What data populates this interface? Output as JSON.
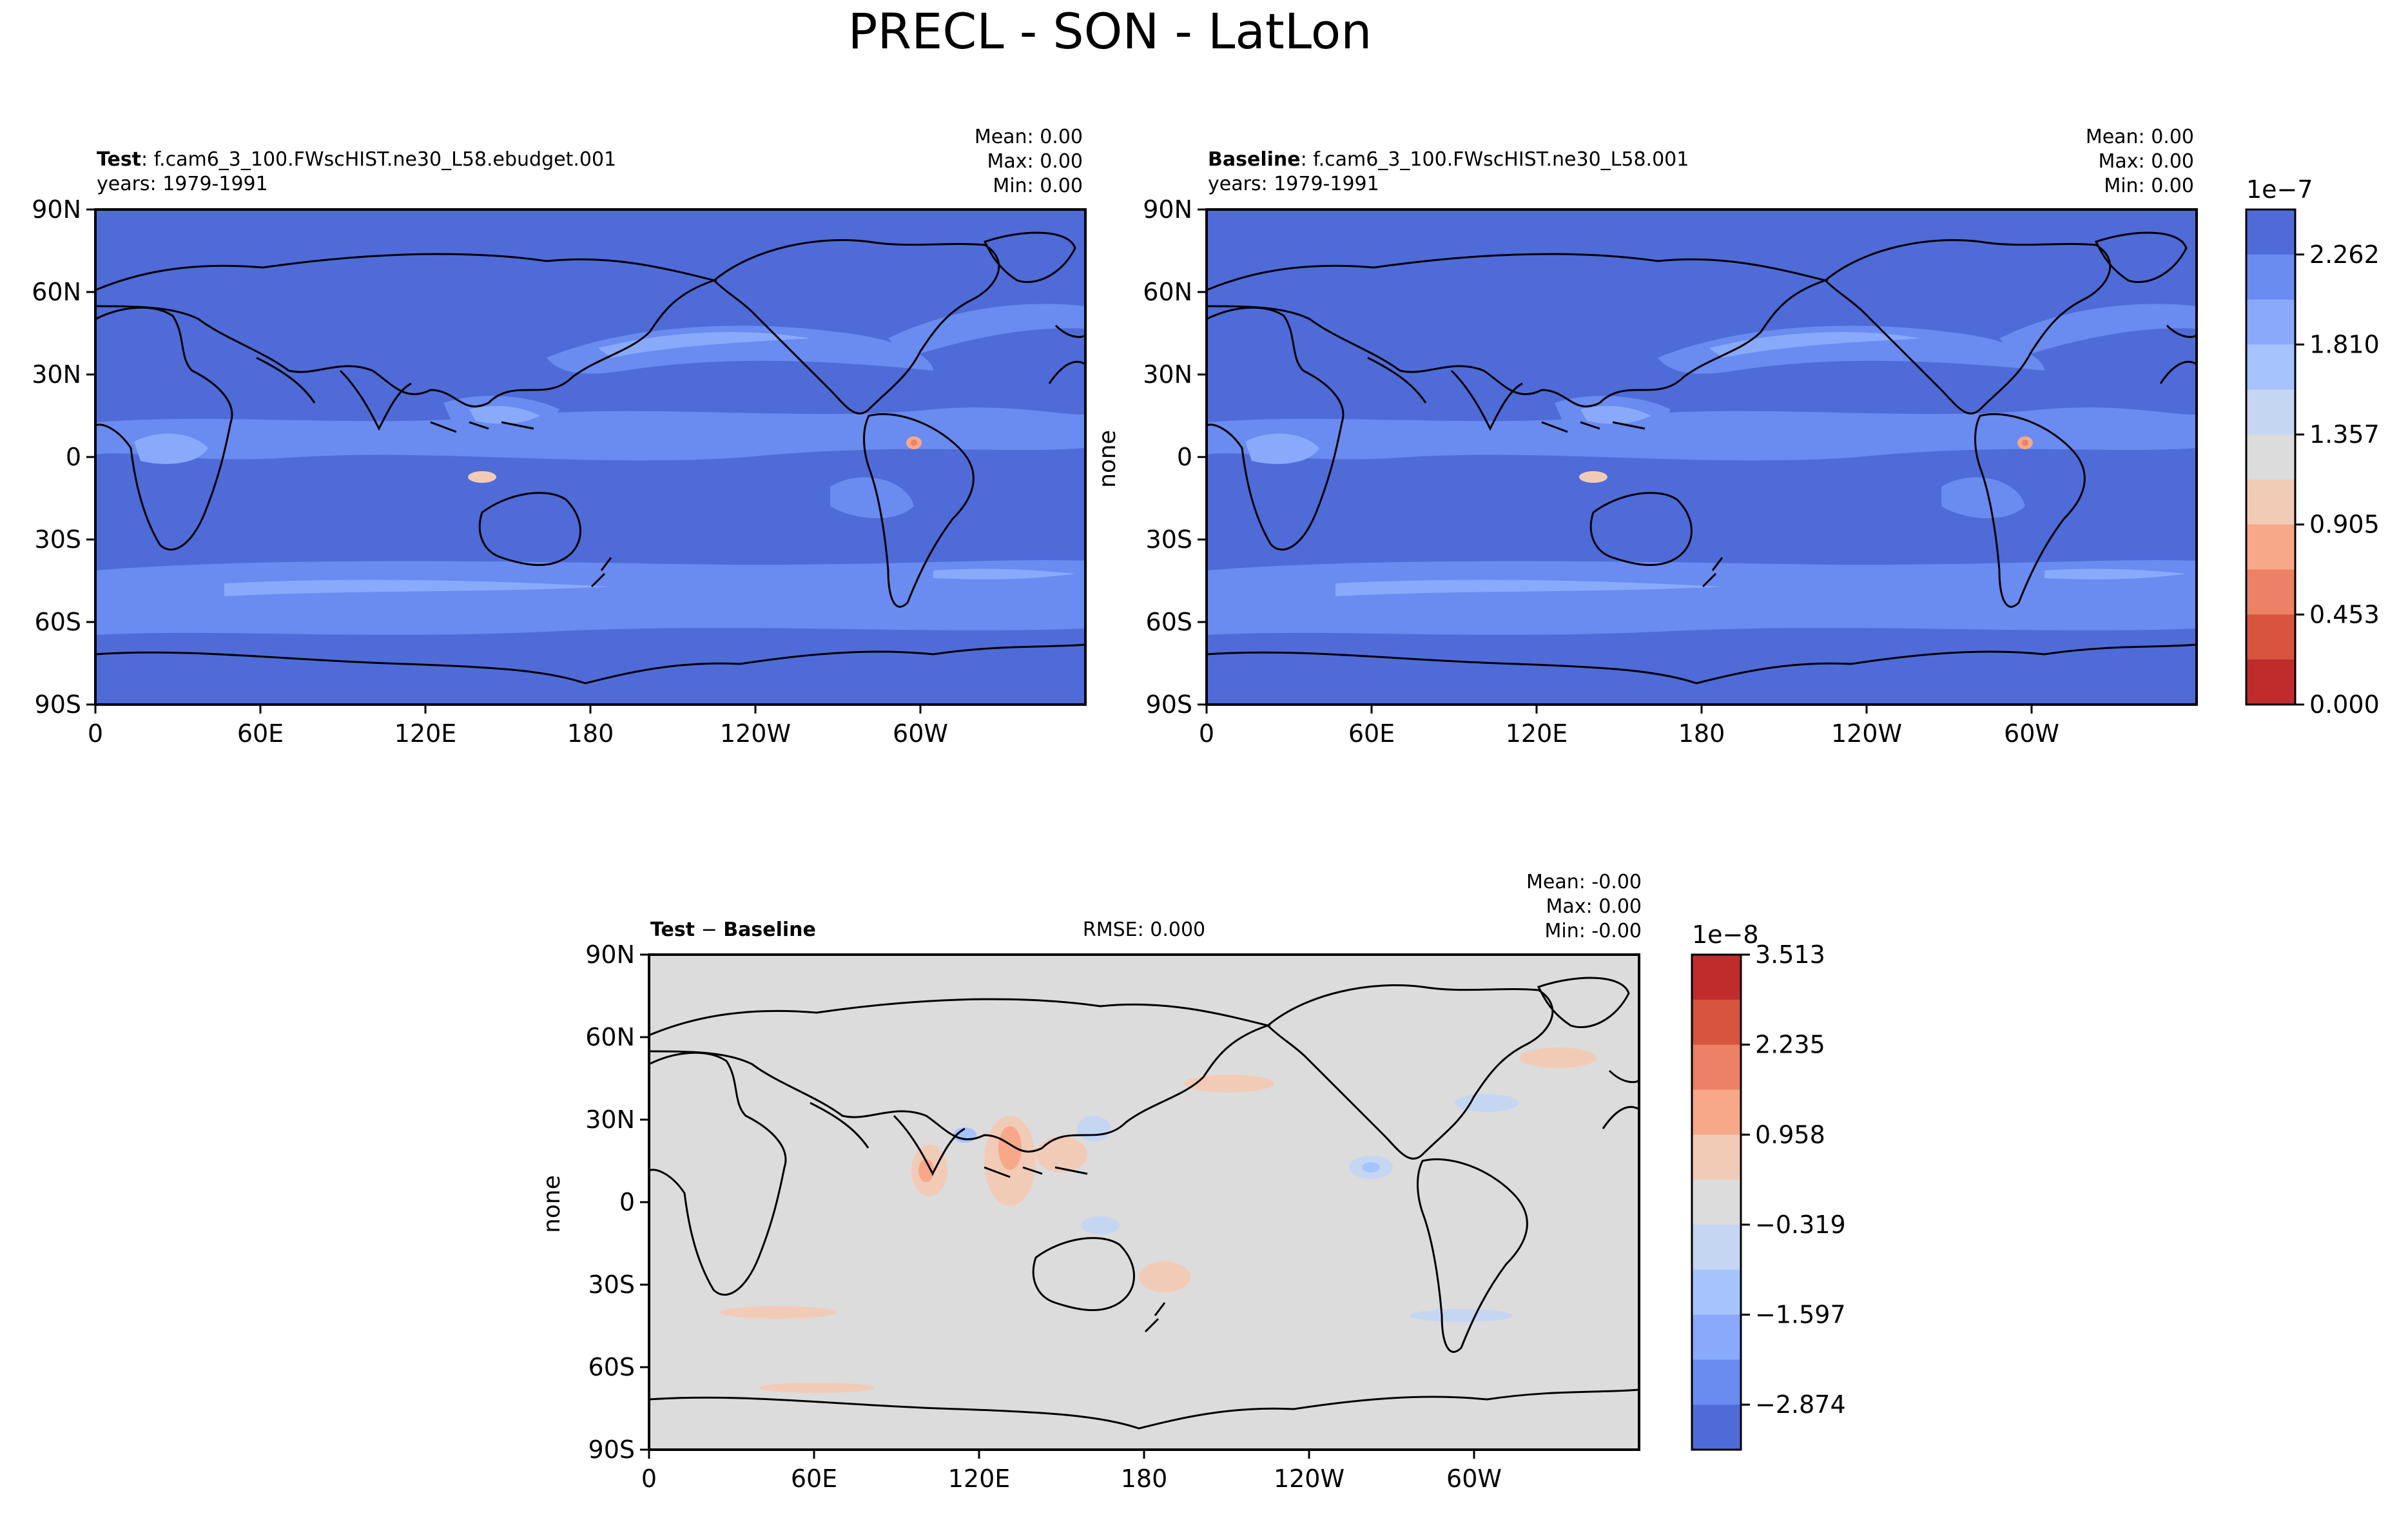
{
  "title": "PRECL - SON - LatLon",
  "colors": {
    "ocean_low": "#4f6bd8",
    "land_blue": "#5f80e8",
    "zero_gray": "#dcdcdc",
    "coast": "#000000"
  },
  "panels": {
    "test": {
      "label_bold": "Test",
      "label_rest": ": f.cam6_3_100.FWscHIST.ne30_L58.ebudget.001",
      "years": "years: 1979-1991",
      "stats": [
        "Mean:  0.00",
        "Max:  0.00",
        "Min:  0.00"
      ],
      "ylabel": ""
    },
    "baseline": {
      "label_bold": "Baseline",
      "label_rest": ": f.cam6_3_100.FWscHIST.ne30_L58.001",
      "years": "years: 1979-1991",
      "stats": [
        "Mean:  0.00",
        "Max:  0.00",
        "Min:  0.00"
      ],
      "ylabel": "none"
    },
    "diff": {
      "label_bold": "Test",
      "label_mid": " − ",
      "label_bold2": "Baseline",
      "rmse": "RMSE: 0.000",
      "stats": [
        "Mean: -0.00",
        "Max:  0.00",
        "Min: -0.00"
      ],
      "ylabel": "none"
    }
  },
  "chart_data": [
    {
      "type": "heatmap",
      "name": "Test",
      "xlabel": "",
      "ylabel": "",
      "xticks": [
        "0",
        "60E",
        "120E",
        "180",
        "120W",
        "60W"
      ],
      "yticks": [
        "90N",
        "60N",
        "30N",
        "0",
        "30S",
        "60S",
        "90S"
      ],
      "xlim": [
        0,
        360
      ],
      "ylim": [
        -90,
        90
      ],
      "colorscale": "coolwarm"
    },
    {
      "type": "heatmap",
      "name": "Baseline",
      "xlabel": "",
      "ylabel": "none",
      "xticks": [
        "0",
        "60E",
        "120E",
        "180",
        "120W",
        "60W"
      ],
      "yticks": [
        "90N",
        "60N",
        "30N",
        "0",
        "30S",
        "60S",
        "90S"
      ],
      "xlim": [
        0,
        360
      ],
      "ylim": [
        -90,
        90
      ],
      "colorbar": {
        "exponent": "1e−7",
        "ticks": [
          "0.000",
          "0.453",
          "0.905",
          "1.357",
          "1.810",
          "2.262"
        ],
        "levels": [
          "#4f6bd8",
          "#6a8bef",
          "#89a9fb",
          "#a7c3fd",
          "#c5d6f2",
          "#dcdcdc",
          "#f2cbb7",
          "#f6a889",
          "#ec8165",
          "#d7543f",
          "#c02c2c"
        ]
      }
    },
    {
      "type": "heatmap",
      "name": "Test - Baseline",
      "xlabel": "",
      "ylabel": "none",
      "xticks": [
        "0",
        "60E",
        "120E",
        "180",
        "120W",
        "60W"
      ],
      "yticks": [
        "90N",
        "60N",
        "30N",
        "0",
        "30S",
        "60S",
        "90S"
      ],
      "xlim": [
        0,
        360
      ],
      "ylim": [
        -90,
        90
      ],
      "colorbar": {
        "exponent": "1e−8",
        "ticks": [
          "3.513",
          "2.235",
          "0.958",
          "−0.319",
          "−1.597",
          "−2.874"
        ],
        "levels": [
          "#c02c2c",
          "#d7543f",
          "#ec8165",
          "#f6a889",
          "#f2cbb7",
          "#dcdcdc",
          "#c5d6f2",
          "#a7c3fd",
          "#89a9fb",
          "#6a8bef",
          "#4f6bd8"
        ]
      }
    }
  ]
}
